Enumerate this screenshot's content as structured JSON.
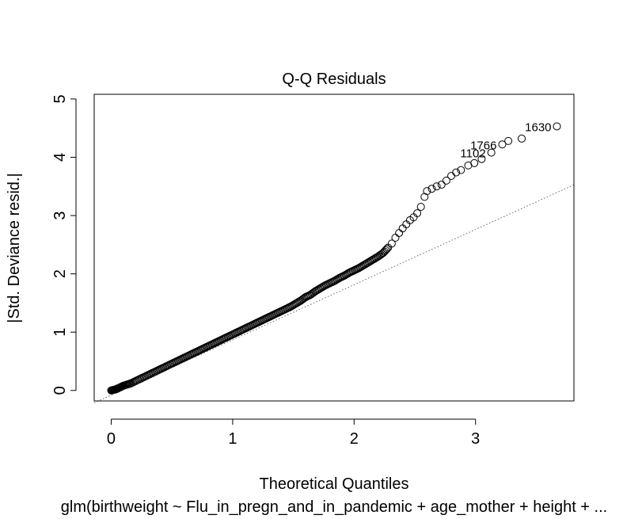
{
  "chart_data": {
    "type": "scatter",
    "title": "Q-Q Residuals",
    "xlabel": "Theoretical Quantiles",
    "ylabel": "|Std. Deviance resid.|",
    "subtitle": "glm(birthweight ~ Flu_in_pregn_and_in_pandemic + age_mother + height + ...",
    "xlim": [
      -0.14,
      3.81
    ],
    "ylim": [
      -0.18,
      5.08
    ],
    "x_ticks": [
      0,
      1,
      2,
      3
    ],
    "y_ticks": [
      0,
      1,
      2,
      3,
      4,
      5
    ],
    "grid": false,
    "reference_line": {
      "slope": 0.947,
      "intercept": -0.08,
      "style": "dotted"
    },
    "points": [
      [
        0.0,
        0.0
      ],
      [
        0.02,
        0.01
      ],
      [
        0.04,
        0.02
      ],
      [
        0.06,
        0.04
      ],
      [
        0.08,
        0.06
      ],
      [
        0.1,
        0.08
      ],
      [
        0.13,
        0.1
      ],
      [
        0.16,
        0.12
      ],
      [
        0.2,
        0.16
      ],
      [
        0.24,
        0.2
      ],
      [
        0.28,
        0.24
      ],
      [
        0.32,
        0.28
      ],
      [
        0.36,
        0.32
      ],
      [
        0.4,
        0.36
      ],
      [
        0.44,
        0.4
      ],
      [
        0.48,
        0.44
      ],
      [
        0.52,
        0.48
      ],
      [
        0.56,
        0.52
      ],
      [
        0.6,
        0.56
      ],
      [
        0.64,
        0.6
      ],
      [
        0.68,
        0.64
      ],
      [
        0.72,
        0.68
      ],
      [
        0.76,
        0.72
      ],
      [
        0.8,
        0.76
      ],
      [
        0.84,
        0.8
      ],
      [
        0.88,
        0.84
      ],
      [
        0.92,
        0.88
      ],
      [
        0.96,
        0.92
      ],
      [
        1.0,
        0.96
      ],
      [
        1.04,
        1.0
      ],
      [
        1.08,
        1.04
      ],
      [
        1.12,
        1.08
      ],
      [
        1.16,
        1.12
      ],
      [
        1.2,
        1.16
      ],
      [
        1.24,
        1.2
      ],
      [
        1.28,
        1.24
      ],
      [
        1.32,
        1.28
      ],
      [
        1.36,
        1.32
      ],
      [
        1.4,
        1.36
      ],
      [
        1.44,
        1.4
      ],
      [
        1.48,
        1.44
      ],
      [
        1.52,
        1.49
      ],
      [
        1.56,
        1.54
      ],
      [
        1.6,
        1.6
      ],
      [
        1.64,
        1.64
      ],
      [
        1.68,
        1.7
      ],
      [
        1.72,
        1.75
      ],
      [
        1.76,
        1.8
      ],
      [
        1.8,
        1.84
      ],
      [
        1.84,
        1.88
      ],
      [
        1.88,
        1.93
      ],
      [
        1.92,
        1.97
      ],
      [
        1.96,
        2.02
      ],
      [
        2.0,
        2.06
      ],
      [
        2.04,
        2.1
      ],
      [
        2.08,
        2.15
      ],
      [
        2.12,
        2.2
      ],
      [
        2.16,
        2.25
      ],
      [
        2.2,
        2.3
      ],
      [
        2.24,
        2.36
      ],
      [
        2.28,
        2.45
      ],
      [
        2.31,
        2.52
      ],
      [
        2.34,
        2.62
      ],
      [
        2.37,
        2.7
      ],
      [
        2.4,
        2.78
      ],
      [
        2.43,
        2.85
      ],
      [
        2.46,
        2.92
      ],
      [
        2.49,
        2.97
      ],
      [
        2.52,
        3.04
      ],
      [
        2.55,
        3.15
      ],
      [
        2.58,
        3.32
      ],
      [
        2.6,
        3.42
      ],
      [
        2.64,
        3.46
      ],
      [
        2.68,
        3.5
      ],
      [
        2.72,
        3.53
      ],
      [
        2.76,
        3.6
      ],
      [
        2.8,
        3.68
      ],
      [
        2.84,
        3.74
      ],
      [
        2.88,
        3.78
      ],
      [
        2.94,
        3.86
      ],
      [
        2.99,
        3.9
      ],
      [
        3.05,
        3.97
      ],
      [
        3.13,
        4.08
      ],
      [
        3.22,
        4.22
      ],
      [
        3.27,
        4.28
      ],
      [
        3.38,
        4.32
      ],
      [
        3.67,
        4.53
      ]
    ],
    "annotations": [
      {
        "label": "1102",
        "x": 3.13,
        "y": 4.08
      },
      {
        "label": "1766",
        "x": 3.22,
        "y": 4.22
      },
      {
        "label": "1630",
        "x": 3.67,
        "y": 4.53
      }
    ]
  }
}
